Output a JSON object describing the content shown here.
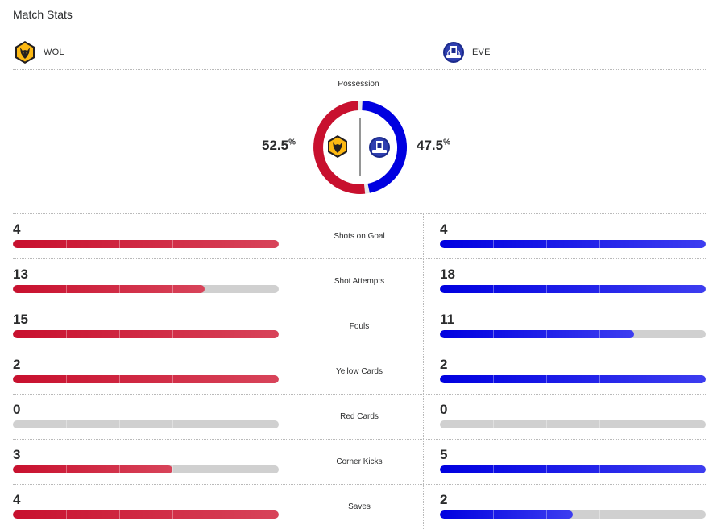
{
  "header": {
    "title": "Match Stats"
  },
  "teams": {
    "home": {
      "abbr": "WOL",
      "crest_icon": "wolves-crest-icon",
      "color": "#c8102e"
    },
    "away": {
      "abbr": "EVE",
      "crest_icon": "everton-crest-icon",
      "color": "#0000e0"
    }
  },
  "possession": {
    "label": "Possession",
    "home_value": "52.5",
    "away_value": "47.5",
    "unit": "%",
    "home_fraction": 0.525,
    "away_fraction": 0.475
  },
  "stats": [
    {
      "label": "Shots on Goal",
      "home": "4",
      "away": "4",
      "home_fraction": 1.0,
      "away_fraction": 1.0
    },
    {
      "label": "Shot Attempts",
      "home": "13",
      "away": "18",
      "home_fraction": 0.72,
      "away_fraction": 1.0
    },
    {
      "label": "Fouls",
      "home": "15",
      "away": "11",
      "home_fraction": 1.0,
      "away_fraction": 0.73
    },
    {
      "label": "Yellow Cards",
      "home": "2",
      "away": "2",
      "home_fraction": 1.0,
      "away_fraction": 1.0
    },
    {
      "label": "Red Cards",
      "home": "0",
      "away": "0",
      "home_fraction": 0.0,
      "away_fraction": 0.0
    },
    {
      "label": "Corner Kicks",
      "home": "3",
      "away": "5",
      "home_fraction": 0.6,
      "away_fraction": 1.0
    },
    {
      "label": "Saves",
      "home": "4",
      "away": "2",
      "home_fraction": 1.0,
      "away_fraction": 0.5
    }
  ]
}
